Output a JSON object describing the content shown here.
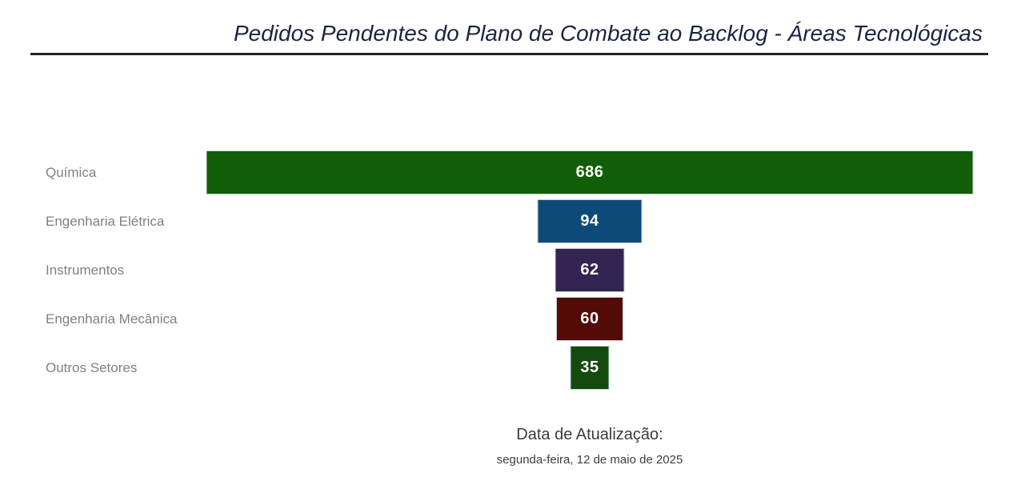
{
  "title": "Pedidos Pendentes do Plano de Combate ao Backlog - Áreas Tecnológicas",
  "chart_data": {
    "type": "funnel",
    "orientation": "horizontal-centered",
    "title": "Pedidos Pendentes do Plano de Combate ao Backlog - Áreas Tecnológicas",
    "categories": [
      "Química",
      "Engenharia Elétrica",
      "Instrumentos",
      "Engenharia Mecânica",
      "Outros Setores"
    ],
    "values": [
      686,
      94,
      62,
      60,
      35
    ],
    "max_value": 686,
    "bar_colors": [
      "#115e08",
      "#0e4a78",
      "#332451",
      "#540a07",
      "#154a0e"
    ],
    "value_label_color": "#ffffff",
    "category_label_color": "#808080",
    "legend": "off",
    "grid": "off",
    "data_labels": "inside-center"
  },
  "footer": {
    "label": "Data de Atualização:",
    "date": "segunda-feira, 12 de maio de 2025"
  }
}
